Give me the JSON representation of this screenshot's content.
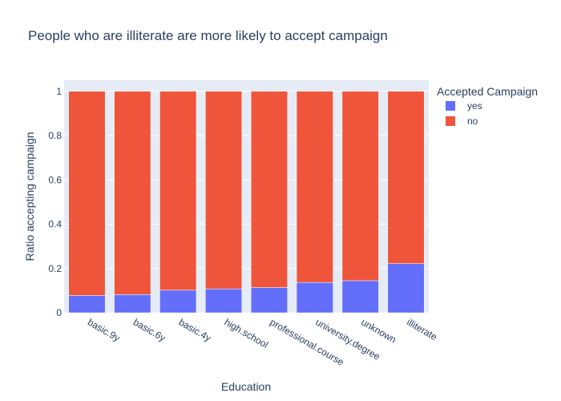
{
  "chart_data": {
    "type": "bar",
    "stacked": true,
    "title": "People who are illiterate are more likely to accept campaign",
    "xlabel": "Education",
    "ylabel": "Ratio accepting campaign",
    "ylim": [
      0,
      1.05
    ],
    "yticks": [
      0,
      0.2,
      0.4,
      0.6,
      0.8,
      1
    ],
    "ytick_labels": [
      "0",
      "0.2",
      "0.4",
      "0.6",
      "0.8",
      "1"
    ],
    "grid": true,
    "legend": {
      "title": "Accepted Campaign",
      "position": "right"
    },
    "categories": [
      "basic.9y",
      "basic.6y",
      "basic.4y",
      "high.school",
      "professional.course",
      "university.degree",
      "unknown",
      "illiterate"
    ],
    "series": [
      {
        "name": "yes",
        "color": "#636efa",
        "values": [
          0.078,
          0.082,
          0.102,
          0.108,
          0.114,
          0.137,
          0.145,
          0.222
        ]
      },
      {
        "name": "no",
        "color": "#ef553b",
        "values": [
          0.922,
          0.918,
          0.898,
          0.892,
          0.886,
          0.863,
          0.855,
          0.778
        ]
      }
    ],
    "plot_bg": "#e5ecf6"
  }
}
